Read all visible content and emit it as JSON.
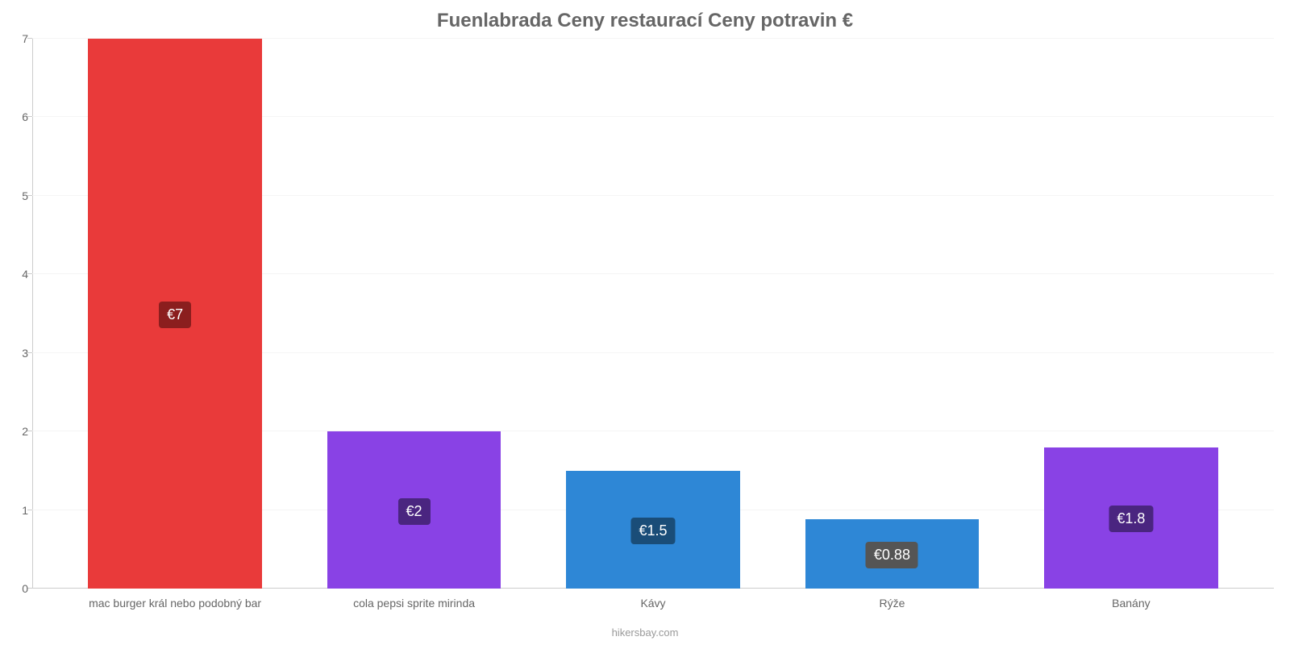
{
  "chart": {
    "type": "bar",
    "title": "Fuenlabrada Ceny restaurací Ceny potravin €",
    "title_fontsize": 24,
    "title_color": "#666666",
    "background_color": "#ffffff",
    "grid_color": "#f5f5f5",
    "axis_color": "#cccccc",
    "axis_label_color": "#666666",
    "axis_label_fontsize": 14,
    "ylim": [
      0,
      7
    ],
    "ytick_step": 1,
    "yticks": [
      "0",
      "1",
      "2",
      "3",
      "4",
      "5",
      "6",
      "7"
    ],
    "bar_width_pct": 14,
    "bars": [
      {
        "category": "mac burger král nebo podobný bar",
        "value": 7,
        "value_label": "€7",
        "bar_color": "#e93a3a",
        "label_bg_color": "#8b1e1e",
        "center_pct": 11.5
      },
      {
        "category": "cola pepsi sprite mirinda",
        "value": 2,
        "value_label": "€2",
        "bar_color": "#8942e5",
        "label_bg_color": "#4a2580",
        "center_pct": 30.75
      },
      {
        "category": "Kávy",
        "value": 1.5,
        "value_label": "€1.5",
        "bar_color": "#2e87d6",
        "label_bg_color": "#1a4d78",
        "center_pct": 50
      },
      {
        "category": "Rýže",
        "value": 0.88,
        "value_label": "€0.88",
        "bar_color": "#2e87d6",
        "label_bg_color": "#555555",
        "center_pct": 69.25
      },
      {
        "category": "Banány",
        "value": 1.8,
        "value_label": "€1.8",
        "bar_color": "#8942e5",
        "label_bg_color": "#4a2580",
        "center_pct": 88.5
      }
    ],
    "attribution": "hikersbay.com",
    "attribution_color": "#999999",
    "attribution_fontsize": 13,
    "value_label_fontsize": 18,
    "value_label_text_color": "#ffffff"
  }
}
